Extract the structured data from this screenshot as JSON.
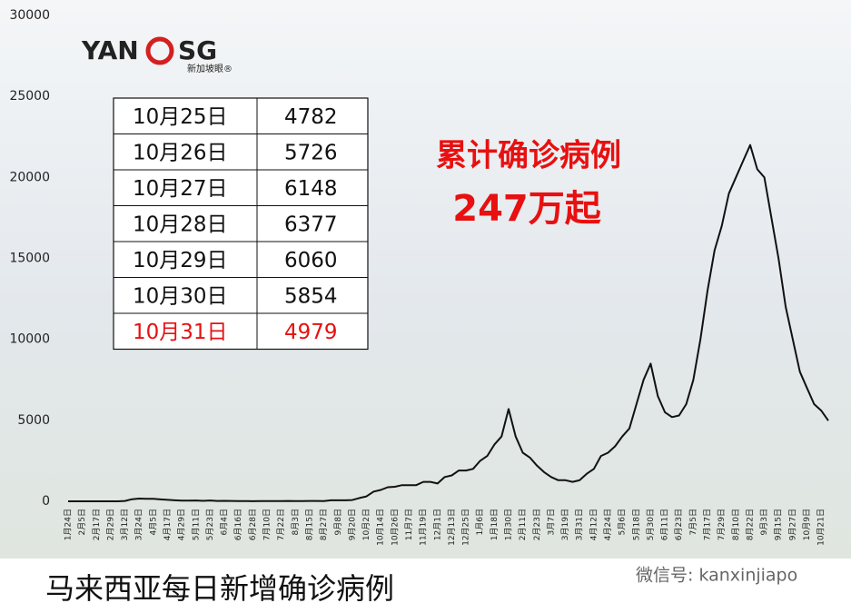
{
  "chart_data": {
    "type": "line",
    "title": "马来西亚每日新增确诊病例",
    "annotations": [
      "累计确诊病例",
      "247万起"
    ],
    "categories": [
      "1月24日",
      null,
      "2月5日",
      null,
      "2月17日",
      null,
      "2月29日",
      null,
      "3月12日",
      null,
      "3月24日",
      null,
      "4月5日",
      null,
      "4月17日",
      null,
      "4月29日",
      null,
      "5月11日",
      null,
      "5月23日",
      null,
      "6月4日",
      null,
      "6月16日",
      null,
      "6月28日",
      null,
      "7月10日",
      null,
      "7月22日",
      null,
      "8月3日",
      null,
      "8月15日",
      null,
      "8月27日",
      null,
      "9月8日",
      null,
      "9月20日",
      null,
      "10月2日",
      null,
      "10月14日",
      null,
      "10月26日",
      null,
      "11月7日",
      null,
      "11月19日",
      null,
      "12月1日",
      null,
      "12月13日",
      null,
      "12月25日",
      null,
      "1月6日",
      null,
      "1月18日",
      null,
      "1月30日",
      null,
      "2月11日",
      null,
      "2月23日",
      null,
      "3月7日",
      null,
      "3月19日",
      null,
      "3月31日",
      null,
      "4月12日",
      null,
      "4月24日",
      null,
      "5月6日",
      null,
      "5月18日",
      null,
      "5月30日",
      null,
      "6月11日",
      null,
      "6月23日",
      null,
      "7月5日",
      null,
      "7月17日",
      null,
      "7月29日",
      null,
      "8月10日",
      null,
      "8月22日",
      null,
      "9月3日",
      null,
      "9月15日",
      null,
      "9月27日",
      null,
      "10月9日",
      null,
      "10月21日",
      null
    ],
    "values": [
      0,
      0,
      0,
      0,
      0,
      0,
      0,
      0,
      20,
      130,
      170,
      150,
      150,
      120,
      90,
      60,
      40,
      40,
      50,
      30,
      50,
      20,
      30,
      20,
      10,
      10,
      5,
      10,
      10,
      10,
      15,
      20,
      15,
      10,
      20,
      20,
      10,
      60,
      60,
      60,
      80,
      200,
      300,
      600,
      700,
      870,
      900,
      1000,
      1000,
      1000,
      1200,
      1200,
      1100,
      1500,
      1600,
      1900,
      1900,
      2000,
      2500,
      2800,
      3500,
      4000,
      5700,
      4000,
      3000,
      2700,
      2200,
      1800,
      1500,
      1300,
      1300,
      1200,
      1300,
      1700,
      2000,
      2800,
      3000,
      3400,
      4000,
      4500,
      6000,
      7500,
      8500,
      6500,
      5500,
      5200,
      5300,
      6000,
      7500,
      10000,
      13000,
      15500,
      17000,
      19000,
      20000,
      21000,
      22000,
      20500,
      20000,
      17500,
      15000,
      12000,
      10000,
      8000,
      7000,
      6000,
      5600,
      4979
    ],
    "color": "#111111",
    "ylim": [
      0,
      30000
    ],
    "yticks": [
      0,
      5000,
      10000,
      15000,
      20000,
      25000,
      30000
    ],
    "grid": false
  },
  "logo": {
    "left": "YAN",
    "right": "SG",
    "sub": "新加坡眼®"
  },
  "table": {
    "rows": [
      [
        "10月25日",
        "4782"
      ],
      [
        "10月26日",
        "5726"
      ],
      [
        "10月27日",
        "6148"
      ],
      [
        "10月28日",
        "6377"
      ],
      [
        "10月29日",
        "6060"
      ],
      [
        "10月30日",
        "5854"
      ],
      [
        "10月31日",
        "4979"
      ]
    ]
  },
  "watermark": "微信号: kanxinjiapo"
}
